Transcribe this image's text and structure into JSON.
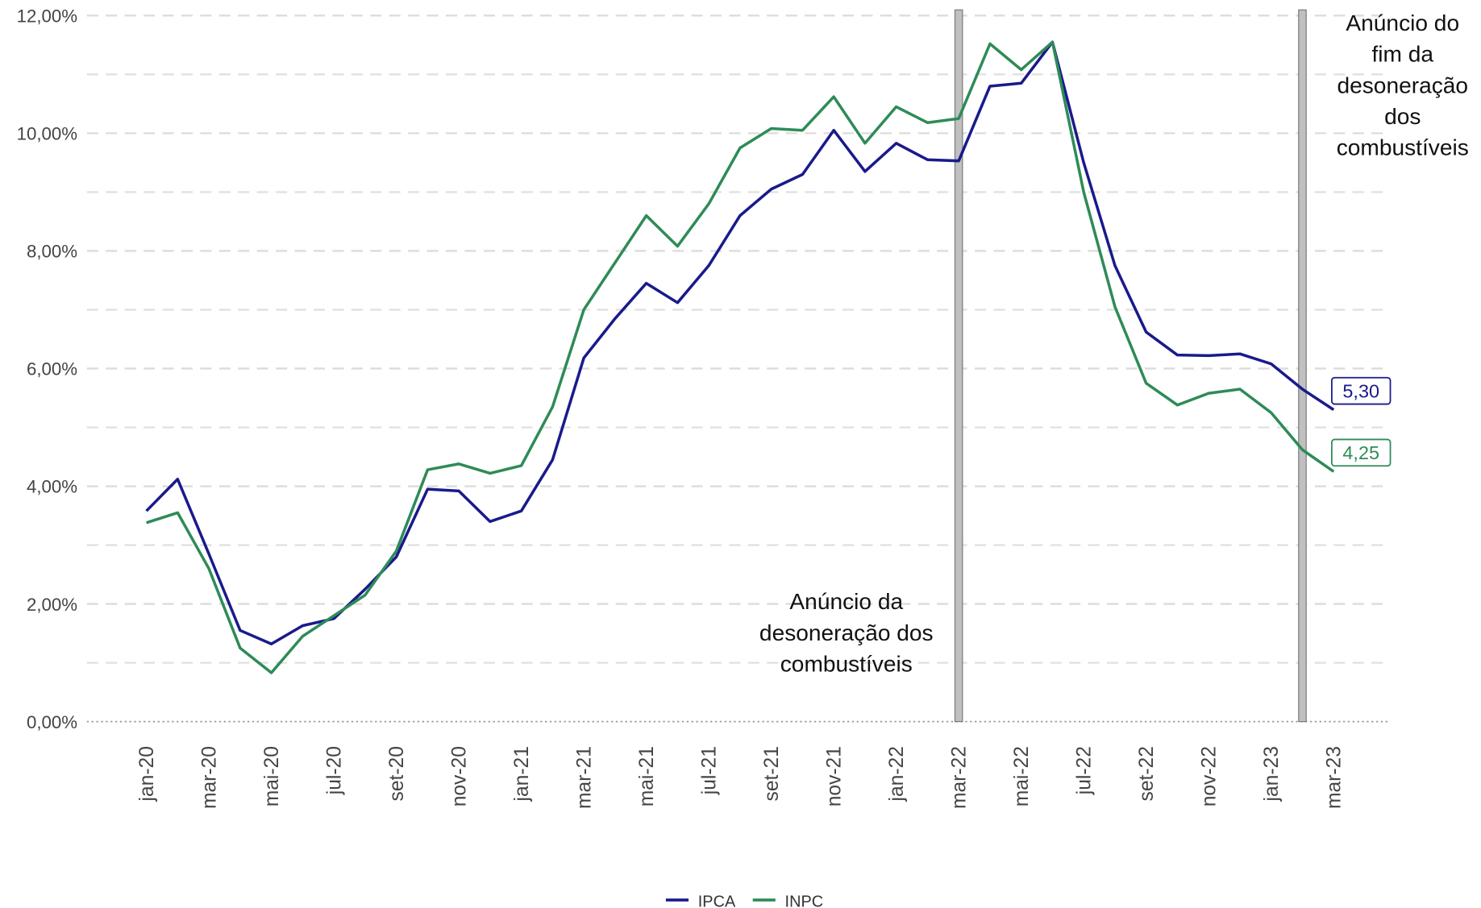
{
  "chart_data": {
    "type": "line",
    "categories": [
      "jan-20",
      null,
      "mar-20",
      null,
      "mai-20",
      null,
      "jul-20",
      null,
      "set-20",
      null,
      "nov-20",
      null,
      "jan-21",
      null,
      "mar-21",
      null,
      "mai-21",
      null,
      "jul-21",
      null,
      "set-21",
      null,
      "nov-21",
      null,
      "jan-22",
      null,
      "mar-22",
      null,
      "mai-22",
      null,
      "jul-22",
      null,
      "set-22",
      null,
      "nov-22",
      null,
      "jan-23",
      null,
      "mar-23"
    ],
    "series": [
      {
        "name": "IPCA",
        "color": "#1a1a8c",
        "values": [
          3.58,
          4.12,
          2.85,
          1.55,
          1.32,
          1.63,
          1.75,
          2.25,
          2.8,
          3.95,
          3.92,
          3.4,
          3.58,
          4.45,
          6.18,
          6.85,
          7.45,
          7.12,
          7.75,
          8.6,
          9.05,
          9.3,
          10.05,
          9.35,
          9.83,
          9.55,
          9.53,
          10.8,
          10.85,
          11.55,
          9.5,
          7.75,
          6.62,
          6.23,
          6.22,
          6.25,
          6.08,
          5.65,
          5.3
        ],
        "value_labels": [
          null,
          null,
          null,
          null,
          null,
          null,
          null,
          null,
          null,
          null,
          null,
          null,
          null,
          null,
          null,
          null,
          null,
          null,
          null,
          null,
          null,
          null,
          null,
          null,
          null,
          null,
          null,
          null,
          null,
          null,
          null,
          null,
          null,
          null,
          null,
          null,
          null,
          null,
          "5,30"
        ]
      },
      {
        "name": "INPC",
        "color": "#2e8b57",
        "values": [
          3.38,
          3.55,
          2.6,
          1.25,
          0.83,
          1.45,
          1.8,
          2.15,
          2.9,
          4.28,
          4.38,
          4.22,
          4.35,
          5.35,
          7.0,
          7.8,
          8.6,
          8.08,
          8.8,
          9.75,
          10.08,
          10.05,
          10.62,
          9.83,
          10.45,
          10.18,
          10.25,
          11.52,
          11.08,
          11.55,
          9.0,
          7.05,
          5.75,
          5.38,
          5.58,
          5.65,
          5.25,
          4.62,
          4.25
        ],
        "value_labels": [
          null,
          null,
          null,
          null,
          null,
          null,
          null,
          null,
          null,
          null,
          null,
          null,
          null,
          null,
          null,
          null,
          null,
          null,
          null,
          null,
          null,
          null,
          null,
          null,
          null,
          null,
          null,
          null,
          null,
          null,
          null,
          null,
          null,
          null,
          null,
          null,
          null,
          null,
          "4,25"
        ]
      }
    ],
    "ylim": [
      0,
      12
    ],
    "yticks": [
      {
        "value": 0,
        "label": "0,00%"
      },
      {
        "value": 2,
        "label": "2,00%"
      },
      {
        "value": 4,
        "label": "4,00%"
      },
      {
        "value": 6,
        "label": "6,00%"
      },
      {
        "value": 8,
        "label": "8,00%"
      },
      {
        "value": 10,
        "label": "10,00%"
      },
      {
        "value": 12,
        "label": "12,00%"
      }
    ],
    "minor_yticks": [
      1,
      3,
      5,
      7,
      9,
      11
    ],
    "grid": true,
    "legend": "bottom",
    "annotations": [
      {
        "index": 26,
        "lines": [
          "Anúncio da",
          "desoneração dos",
          "combustíveis"
        ]
      },
      {
        "index": 37,
        "lines": [
          "Anúncio do",
          "fim da",
          "desoneração",
          "dos",
          "combustíveis"
        ]
      }
    ]
  }
}
